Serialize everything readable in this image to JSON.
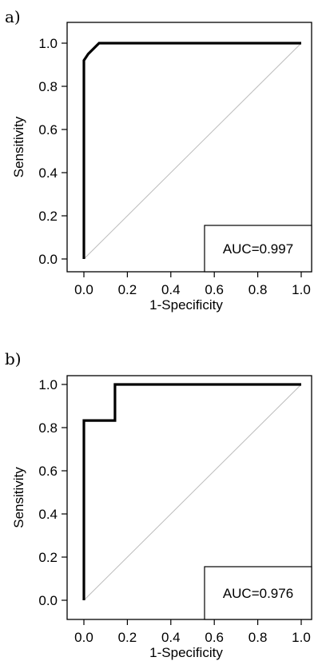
{
  "chart_data": [
    {
      "type": "line",
      "panel_label": "a)",
      "title": "",
      "xlabel": "1-Specificity",
      "ylabel": "Sensitivity",
      "xlim": [
        0,
        1
      ],
      "ylim": [
        0,
        1
      ],
      "x_ticks": [
        "0.0",
        "0.2",
        "0.4",
        "0.6",
        "0.8",
        "1.0"
      ],
      "y_ticks": [
        "0.0",
        "0.2",
        "0.4",
        "0.6",
        "0.8",
        "1.0"
      ],
      "grid": false,
      "legend": "none",
      "series": [
        {
          "x": [
            0,
            0,
            0.02,
            0.07,
            1.0
          ],
          "y": [
            0,
            0.92,
            0.95,
            1.0,
            1.0
          ],
          "color": "#000000"
        }
      ],
      "reference_line": {
        "x": [
          0,
          1
        ],
        "y": [
          0,
          1
        ],
        "color": "#bbbbbb"
      },
      "annotation": "AUC=0.997",
      "annotation_position": "bottom-right"
    },
    {
      "type": "line",
      "panel_label": "b)",
      "title": "",
      "xlabel": "1-Specificity",
      "ylabel": "Sensitivity",
      "xlim": [
        0,
        1
      ],
      "ylim": [
        0,
        1
      ],
      "x_ticks": [
        "0.0",
        "0.2",
        "0.4",
        "0.6",
        "0.8",
        "1.0"
      ],
      "y_ticks": [
        "0.0",
        "0.2",
        "0.4",
        "0.6",
        "0.8",
        "1.0"
      ],
      "grid": false,
      "legend": "none",
      "series": [
        {
          "x": [
            0,
            0,
            0.143,
            0.143,
            1.0
          ],
          "y": [
            0,
            0.833,
            0.833,
            1.0,
            1.0
          ],
          "color": "#000000"
        }
      ],
      "reference_line": {
        "x": [
          0,
          1
        ],
        "y": [
          0,
          1
        ],
        "color": "#bbbbbb"
      },
      "annotation": "AUC=0.976",
      "annotation_position": "bottom-right"
    }
  ]
}
